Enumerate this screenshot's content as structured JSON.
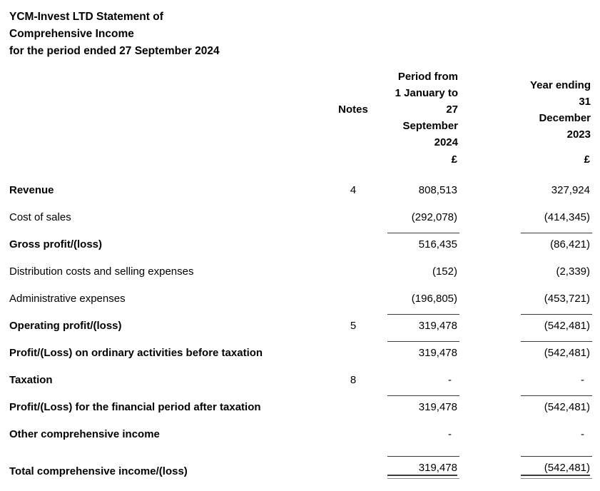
{
  "title": {
    "lines": [
      "YCM-Invest LTD Statement of",
      "Comprehensive Income",
      "for the period ended 27 September 2024"
    ]
  },
  "columns": {
    "notes_label": "Notes",
    "period": {
      "lines": [
        "Period from",
        "1 January to",
        "27",
        "September",
        "2024"
      ],
      "currency": "£"
    },
    "year": {
      "lines": [
        "Year ending",
        "31",
        "December",
        "2023"
      ],
      "currency": "£"
    }
  },
  "rows": [
    {
      "label": "Revenue",
      "bold": true,
      "note": "4",
      "period": "808,513",
      "year": "327,924",
      "rule_top": false,
      "total": false,
      "spacer_before": false
    },
    {
      "label": "Cost of sales",
      "bold": false,
      "note": "",
      "period": "(292,078)",
      "year": "(414,345)",
      "rule_top": false,
      "total": false,
      "spacer_before": false
    },
    {
      "label": "Gross profit/(loss)",
      "bold": true,
      "note": "",
      "period": "516,435",
      "year": "(86,421)",
      "rule_top": true,
      "total": false,
      "spacer_before": false
    },
    {
      "label": "Distribution costs and selling expenses",
      "bold": false,
      "note": "",
      "period": "(152)",
      "year": "(2,339)",
      "rule_top": false,
      "total": false,
      "spacer_before": false
    },
    {
      "label": "Administrative expenses",
      "bold": false,
      "note": "",
      "period": "(196,805)",
      "year": "(453,721)",
      "rule_top": false,
      "total": false,
      "spacer_before": false
    },
    {
      "label": "Operating profit/(loss)",
      "bold": true,
      "note": "5",
      "period": "319,478",
      "year": "(542,481)",
      "rule_top": true,
      "total": false,
      "spacer_before": false
    },
    {
      "label": "Profit/(Loss) on ordinary activities before taxation",
      "bold": true,
      "note": "",
      "period": "319,478",
      "year": "(542,481)",
      "rule_top": true,
      "total": false,
      "spacer_before": false
    },
    {
      "label": "Taxation",
      "bold": true,
      "note": "8",
      "period": "-",
      "year": "-",
      "rule_top": false,
      "total": false,
      "spacer_before": false
    },
    {
      "label": "Profit/(Loss) for the financial period after taxation",
      "bold": true,
      "note": "",
      "period": "319,478",
      "year": "(542,481)",
      "rule_top": true,
      "total": false,
      "spacer_before": false
    },
    {
      "label": "Other comprehensive income",
      "bold": true,
      "note": "",
      "period": "-",
      "year": "-",
      "rule_top": false,
      "total": false,
      "spacer_before": false
    },
    {
      "label": "Total comprehensive income/(loss)",
      "bold": true,
      "note": "",
      "period": "319,478",
      "year": "(542,481)",
      "rule_top": true,
      "total": true,
      "spacer_before": true
    }
  ],
  "colors": {
    "text": "#000000",
    "rule": "#3a3a3a",
    "background": "#ffffff"
  }
}
